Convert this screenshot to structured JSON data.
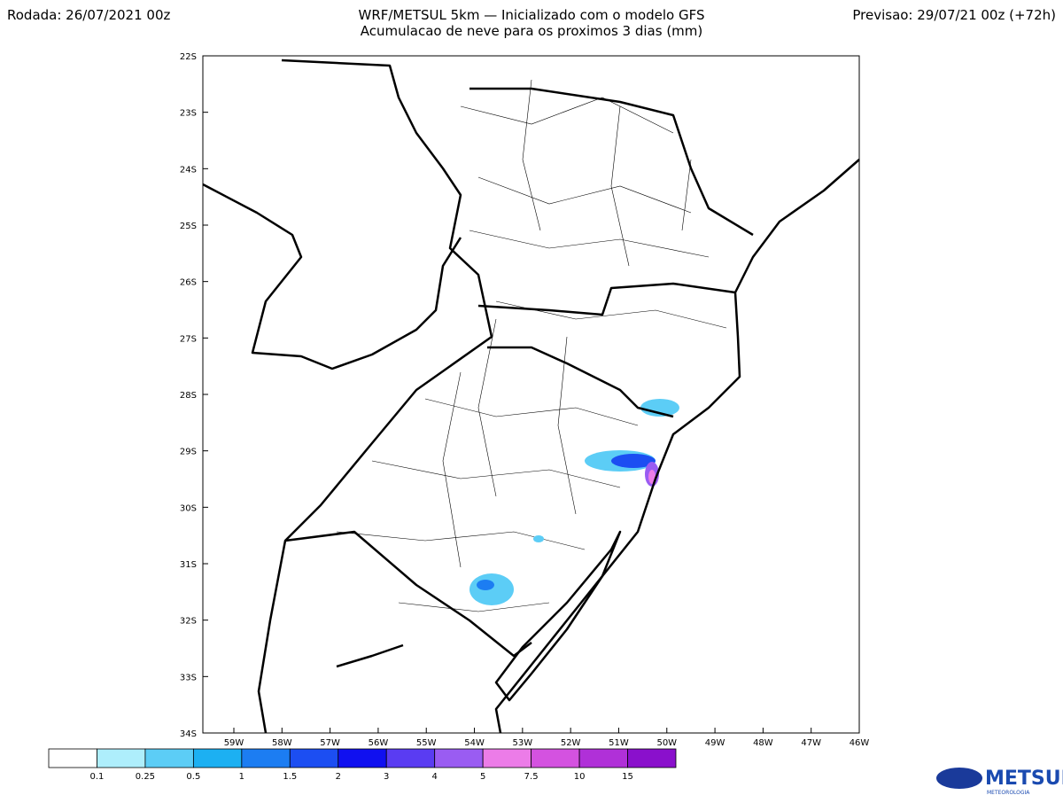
{
  "header": {
    "left": "Rodada: 26/07/2021 00z",
    "title": "WRF/METSUL 5km — Inicializado com o modelo GFS",
    "subtitle": "Acumulacao de neve para os proximos 3 dias (mm)",
    "right": "Previsao: 29/07/21 00z (+72h)"
  },
  "map": {
    "lat_labels": [
      "22S",
      "23S",
      "24S",
      "25S",
      "26S",
      "27S",
      "28S",
      "29S",
      "30S",
      "31S",
      "32S",
      "33S",
      "34S"
    ],
    "lon_labels": [
      "59W",
      "58W",
      "57W",
      "56W",
      "55W",
      "54W",
      "53W",
      "52W",
      "51W",
      "50W",
      "49W",
      "48W",
      "47W",
      "46W"
    ]
  },
  "colorbar": {
    "labels": [
      "0.1",
      "0.25",
      "0.5",
      "1",
      "1.5",
      "2",
      "3",
      "4",
      "5",
      "7.5",
      "10",
      "15"
    ],
    "colors": [
      "#ffffff",
      "#aeeefc",
      "#5ccdf6",
      "#1cb0f2",
      "#1c7df2",
      "#1c4ef2",
      "#1010f0",
      "#5a3cf2",
      "#9a5cf2",
      "#ec7ce8",
      "#d452e0",
      "#b030d8",
      "#8a10cc"
    ]
  },
  "logo": {
    "name": "METSUL",
    "tagline": "METEOROLOGIA"
  }
}
